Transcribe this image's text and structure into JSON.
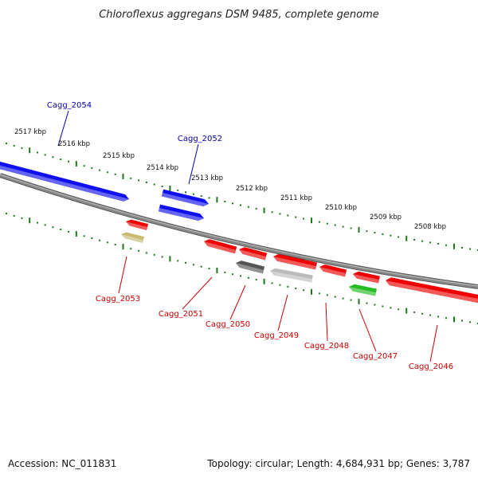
{
  "title": "Chloroflexus aggregans DSM 9485, complete genome",
  "footer": {
    "accession": "Accession: NC_011831",
    "topology": "Topology: circular; Length: 4,684,931 bp; Genes: 3,787"
  },
  "colors": {
    "blue": "#1010ee",
    "red": "#ee0000",
    "green": "#22bb22",
    "olive": "#c8b870",
    "dark_gray": "#555555",
    "light_gray": "#bbbbbb",
    "backbone": "#888888",
    "ticks": "#1a7a1a",
    "blue_label": "#0000aa",
    "red_label": "#cc0000"
  },
  "scale_labels": [
    "2517 kbp",
    "2516 kbp",
    "2515 kbp",
    "2514 kbp",
    "2513 kbp",
    "2512 kbp",
    "2511 kbp",
    "2510 kbp",
    "2509 kbp",
    "2508 kbp"
  ],
  "genes": [
    {
      "id": "Cagg_2054",
      "strand": "+",
      "color": "blue"
    },
    {
      "id": "Cagg_2052",
      "strand": "+",
      "color": "blue"
    },
    {
      "id": "Cagg_2052b",
      "strand": "+",
      "color": "blue"
    },
    {
      "id": "Cagg_2053",
      "strand": "-",
      "color": "red"
    },
    {
      "id": "Cagg_2053b",
      "strand": "-",
      "color": "olive"
    },
    {
      "id": "Cagg_2051",
      "strand": "-",
      "color": "red"
    },
    {
      "id": "Cagg_2050",
      "strand": "-",
      "color": "red"
    },
    {
      "id": "Cagg_2050b",
      "strand": "-",
      "color": "dark_gray"
    },
    {
      "id": "Cagg_2049",
      "strand": "-",
      "color": "red"
    },
    {
      "id": "Cagg_2049b",
      "strand": "-",
      "color": "light_gray"
    },
    {
      "id": "Cagg_2048",
      "strand": "-",
      "color": "red"
    },
    {
      "id": "Cagg_2047",
      "strand": "-",
      "color": "red"
    },
    {
      "id": "Cagg_2047b",
      "strand": "-",
      "color": "green"
    },
    {
      "id": "Cagg_2046",
      "strand": "-",
      "color": "red"
    }
  ],
  "labels": [
    {
      "text": "Cagg_2054",
      "color": "blue_label"
    },
    {
      "text": "Cagg_2052",
      "color": "blue_label"
    },
    {
      "text": "Cagg_2053",
      "color": "red_label"
    },
    {
      "text": "Cagg_2051",
      "color": "red_label"
    },
    {
      "text": "Cagg_2050",
      "color": "red_label"
    },
    {
      "text": "Cagg_2049",
      "color": "red_label"
    },
    {
      "text": "Cagg_2048",
      "color": "red_label"
    },
    {
      "text": "Cagg_2047",
      "color": "red_label"
    },
    {
      "text": "Cagg_2046",
      "color": "red_label"
    }
  ]
}
